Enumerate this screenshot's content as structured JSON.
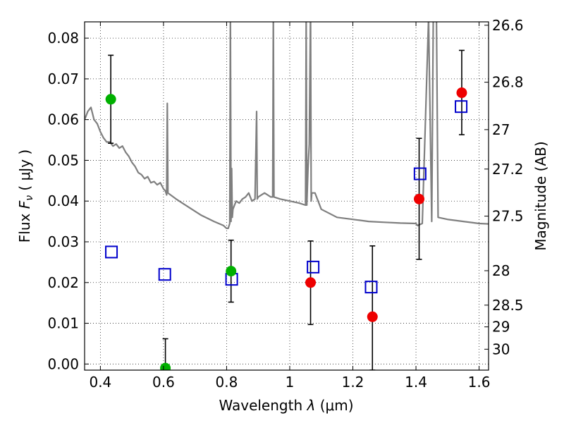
{
  "chart_data": {
    "type": "scatter",
    "xlabel_prefix": "Wavelength",
    "xlabel_var": "λ",
    "xlabel_unit": "(μm)",
    "ylabel_prefix": "Flux",
    "ylabel_var": "F",
    "ylabel_sub": "ν",
    "ylabel_unit": "( μJy )",
    "y2label": "Magnitude (AB)",
    "xlim": [
      0.35,
      1.63
    ],
    "ylim": [
      -0.0015,
      0.084
    ],
    "xticks": [
      0.4,
      0.6,
      0.8,
      1.0,
      1.2,
      1.4,
      1.6
    ],
    "xtick_labels": [
      "0.4",
      "0.6",
      "0.8",
      "1",
      "1.2",
      "1.4",
      "1.6"
    ],
    "yticks": [
      0.0,
      0.01,
      0.02,
      0.03,
      0.04,
      0.05,
      0.06,
      0.07,
      0.08
    ],
    "ytick_labels": [
      "0.00",
      "0.01",
      "0.02",
      "0.03",
      "0.04",
      "0.05",
      "0.06",
      "0.07",
      "0.08"
    ],
    "y2ticks": [
      {
        "mag": 26.6,
        "label": "26.6"
      },
      {
        "mag": 26.8,
        "label": "26.8"
      },
      {
        "mag": 27.0,
        "label": "27"
      },
      {
        "mag": 27.2,
        "label": "27.2"
      },
      {
        "mag": 27.5,
        "label": "27.5"
      },
      {
        "mag": 28.0,
        "label": "28"
      },
      {
        "mag": 28.5,
        "label": "28.5"
      },
      {
        "mag": 29.0,
        "label": "29"
      },
      {
        "mag": 30.0,
        "label": "30"
      }
    ],
    "grid": true,
    "colors": {
      "model": "#7f7f7f",
      "green": "#00b000",
      "red": "#ee0000",
      "blue": "#0000cc",
      "errorbar": "#000000"
    },
    "model_spectrum": {
      "x": [
        0.35,
        0.36,
        0.37,
        0.38,
        0.39,
        0.4,
        0.41,
        0.42,
        0.43,
        0.44,
        0.45,
        0.46,
        0.47,
        0.48,
        0.49,
        0.5,
        0.51,
        0.52,
        0.53,
        0.54,
        0.55,
        0.56,
        0.57,
        0.58,
        0.59,
        0.6,
        0.606,
        0.61,
        0.612,
        0.614,
        0.64,
        0.68,
        0.72,
        0.76,
        0.79,
        0.8,
        0.805,
        0.81,
        0.812,
        0.814,
        0.816,
        0.818,
        0.82,
        0.83,
        0.84,
        0.85,
        0.86,
        0.87,
        0.88,
        0.89,
        0.895,
        0.897,
        0.9,
        0.92,
        0.94,
        0.946,
        0.948,
        0.95,
        0.97,
        1.0,
        1.03,
        1.05,
        1.052,
        1.054,
        1.058,
        1.062,
        1.066,
        1.068,
        1.07,
        1.08,
        1.1,
        1.15,
        1.2,
        1.25,
        1.3,
        1.35,
        1.4,
        1.405,
        1.42,
        1.44,
        1.45,
        1.455,
        1.46,
        1.465,
        1.47,
        1.5,
        1.55,
        1.6,
        1.63
      ],
      "y": [
        0.06,
        0.062,
        0.063,
        0.06,
        0.059,
        0.057,
        0.0555,
        0.0545,
        0.0545,
        0.0535,
        0.054,
        0.053,
        0.0535,
        0.052,
        0.051,
        0.0495,
        0.0485,
        0.047,
        0.0465,
        0.0455,
        0.046,
        0.0445,
        0.0448,
        0.044,
        0.0445,
        0.043,
        0.0425,
        0.0415,
        0.064,
        0.042,
        0.0405,
        0.0385,
        0.0365,
        0.035,
        0.034,
        0.0333,
        0.0333,
        0.0345,
        0.086,
        0.035,
        0.048,
        0.036,
        0.038,
        0.04,
        0.0395,
        0.0405,
        0.041,
        0.042,
        0.04,
        0.0405,
        0.062,
        0.0405,
        0.041,
        0.042,
        0.041,
        0.041,
        0.086,
        0.041,
        0.0405,
        0.04,
        0.0395,
        0.039,
        0.086,
        0.039,
        0.048,
        0.054,
        0.088,
        0.04,
        0.042,
        0.042,
        0.038,
        0.036,
        0.0355,
        0.035,
        0.0348,
        0.0346,
        0.0345,
        0.034,
        0.0345,
        0.085,
        0.035,
        0.088,
        0.088,
        0.085,
        0.036,
        0.0355,
        0.035,
        0.0345,
        0.0344
      ]
    },
    "series": [
      {
        "points": [
          {
            "x": 0.433,
            "y": 0.065,
            "yerr_lo": 0.0542,
            "yerr_hi": 0.0758
          },
          {
            "x": 0.606,
            "y": -0.001,
            "yerr_lo": -0.001,
            "yerr_hi": 0.0062
          },
          {
            "x": 0.814,
            "y": 0.0228,
            "yerr_lo": 0.0152,
            "yerr_hi": 0.0304
          }
        ]
      },
      {
        "points": [
          {
            "x": 1.066,
            "y": 0.02,
            "yerr_lo": 0.0097,
            "yerr_hi": 0.0302
          },
          {
            "x": 1.262,
            "y": 0.0116,
            "yerr_lo": -0.0015,
            "yerr_hi": 0.029
          },
          {
            "x": 1.41,
            "y": 0.0405,
            "yerr_lo": 0.0257,
            "yerr_hi": 0.0554
          },
          {
            "x": 1.545,
            "y": 0.0666,
            "yerr_lo": 0.0563,
            "yerr_hi": 0.077
          }
        ]
      },
      {
        "points": [
          {
            "x": 0.435,
            "y": 0.0275
          },
          {
            "x": 0.604,
            "y": 0.022
          },
          {
            "x": 0.816,
            "y": 0.0208
          },
          {
            "x": 1.074,
            "y": 0.0238
          },
          {
            "x": 1.258,
            "y": 0.0189
          },
          {
            "x": 1.413,
            "y": 0.0467
          },
          {
            "x": 1.543,
            "y": 0.0632
          }
        ]
      }
    ]
  }
}
